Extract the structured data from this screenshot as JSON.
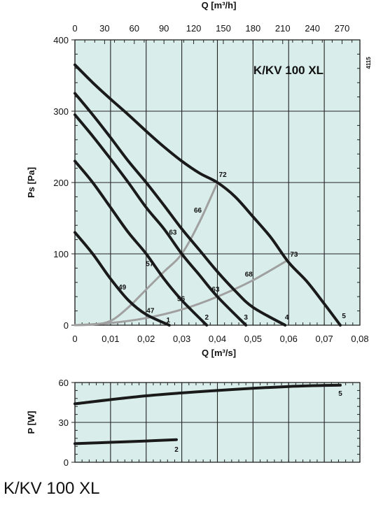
{
  "footer_title": "K/KV 100 XL",
  "colors": {
    "plot_background": "#d9eeea",
    "fan_curve": "#1a1a1a",
    "system_curve": "#a0a0a0",
    "grid": "#222222"
  },
  "chart_data": [
    {
      "type": "line",
      "title": "K/KV 100 XL",
      "code": "4115",
      "xlabel": "Q [m³/s]",
      "x2label": "Q [m³/h]",
      "ylabel": "Ps [Pa]",
      "xlim": [
        0,
        0.08
      ],
      "ylim": [
        0,
        400
      ],
      "x2lim": [
        0,
        288
      ],
      "xticks": [
        "0",
        "0,01",
        "0,02",
        "0,03",
        "0,04",
        "0,05",
        "0,06",
        "0,07",
        "0,08"
      ],
      "x2ticks": [
        "0",
        "30",
        "60",
        "90",
        "120",
        "150",
        "180",
        "210",
        "240",
        "270"
      ],
      "yticks": [
        "0",
        "100",
        "200",
        "300",
        "400"
      ],
      "grid": true,
      "series": [
        {
          "name": "1",
          "points": [
            [
              0,
              130
            ],
            [
              0.005,
              100
            ],
            [
              0.01,
              65
            ],
            [
              0.015,
              35
            ],
            [
              0.02,
              15
            ],
            [
              0.0265,
              0
            ]
          ]
        },
        {
          "name": "2",
          "points": [
            [
              0,
              230
            ],
            [
              0.005,
              200
            ],
            [
              0.01,
              165
            ],
            [
              0.015,
              130
            ],
            [
              0.02,
              100
            ],
            [
              0.025,
              65
            ],
            [
              0.03,
              35
            ],
            [
              0.037,
              0
            ]
          ]
        },
        {
          "name": "3",
          "points": [
            [
              0,
              295
            ],
            [
              0.005,
              265
            ],
            [
              0.01,
              233
            ],
            [
              0.015,
              200
            ],
            [
              0.02,
              165
            ],
            [
              0.025,
              135
            ],
            [
              0.03,
              100
            ],
            [
              0.035,
              70
            ],
            [
              0.04,
              40
            ],
            [
              0.048,
              0
            ]
          ]
        },
        {
          "name": "4",
          "points": [
            [
              0,
              325
            ],
            [
              0.005,
              295
            ],
            [
              0.01,
              263
            ],
            [
              0.015,
              230
            ],
            [
              0.02,
              200
            ],
            [
              0.025,
              168
            ],
            [
              0.03,
              135
            ],
            [
              0.035,
              105
            ],
            [
              0.04,
              75
            ],
            [
              0.045,
              48
            ],
            [
              0.05,
              25
            ],
            [
              0.059,
              0
            ]
          ]
        },
        {
          "name": "5",
          "points": [
            [
              0,
              365
            ],
            [
              0.005,
              340
            ],
            [
              0.01,
              317
            ],
            [
              0.015,
              295
            ],
            [
              0.02,
              272
            ],
            [
              0.025,
              250
            ],
            [
              0.03,
              230
            ],
            [
              0.035,
              213
            ],
            [
              0.04,
              200
            ],
            [
              0.045,
              180
            ],
            [
              0.05,
              152
            ],
            [
              0.055,
              123
            ],
            [
              0.06,
              88
            ],
            [
              0.065,
              62
            ],
            [
              0.07,
              30
            ],
            [
              0.0745,
              0
            ]
          ]
        }
      ],
      "system_curves": [
        {
          "points": [
            [
              0,
              0
            ],
            [
              0.005,
              1
            ],
            [
              0.01,
              6
            ],
            [
              0.015,
              25
            ],
            [
              0.02,
              50
            ],
            [
              0.025,
              75
            ],
            [
              0.03,
              100
            ],
            [
              0.035,
              145
            ],
            [
              0.04,
              200
            ]
          ]
        },
        {
          "points": [
            [
              0,
              0
            ],
            [
              0.01,
              3
            ],
            [
              0.02,
              10
            ],
            [
              0.03,
              22
            ],
            [
              0.04,
              40
            ],
            [
              0.05,
              63
            ],
            [
              0.06,
              92
            ]
          ]
        }
      ],
      "annotations": [
        {
          "text": "72",
          "x": 0.0415,
          "y": 208
        },
        {
          "text": "66",
          "x": 0.0345,
          "y": 158
        },
        {
          "text": "63",
          "x": 0.0275,
          "y": 127
        },
        {
          "text": "57",
          "x": 0.021,
          "y": 83
        },
        {
          "text": "49",
          "x": 0.0133,
          "y": 50
        },
        {
          "text": "47",
          "x": 0.0212,
          "y": 17
        },
        {
          "text": "56",
          "x": 0.0298,
          "y": 34
        },
        {
          "text": "63",
          "x": 0.0395,
          "y": 47
        },
        {
          "text": "68",
          "x": 0.0488,
          "y": 68
        },
        {
          "text": "73",
          "x": 0.0615,
          "y": 96
        },
        {
          "text": "1",
          "x": 0.0262,
          "y": 4
        },
        {
          "text": "2",
          "x": 0.037,
          "y": 8
        },
        {
          "text": "3",
          "x": 0.048,
          "y": 8
        },
        {
          "text": "4",
          "x": 0.0595,
          "y": 8
        },
        {
          "text": "5",
          "x": 0.0755,
          "y": 10
        }
      ]
    },
    {
      "type": "line",
      "xlabel": "",
      "ylabel": "P [W]",
      "xlim": [
        0,
        0.08
      ],
      "ylim": [
        0,
        60
      ],
      "yticks": [
        "0",
        "30",
        "60"
      ],
      "grid": true,
      "series": [
        {
          "name": "5",
          "points": [
            [
              0,
              44
            ],
            [
              0.02,
              50
            ],
            [
              0.04,
              54
            ],
            [
              0.06,
              57
            ],
            [
              0.0745,
              58
            ]
          ]
        },
        {
          "name": "2",
          "points": [
            [
              0,
              14
            ],
            [
              0.01,
              15
            ],
            [
              0.02,
              16
            ],
            [
              0.0285,
              17
            ]
          ]
        }
      ],
      "annotations": [
        {
          "text": "5",
          "x": 0.0745,
          "y": 50
        },
        {
          "text": "2",
          "x": 0.0285,
          "y": 8
        }
      ]
    }
  ]
}
